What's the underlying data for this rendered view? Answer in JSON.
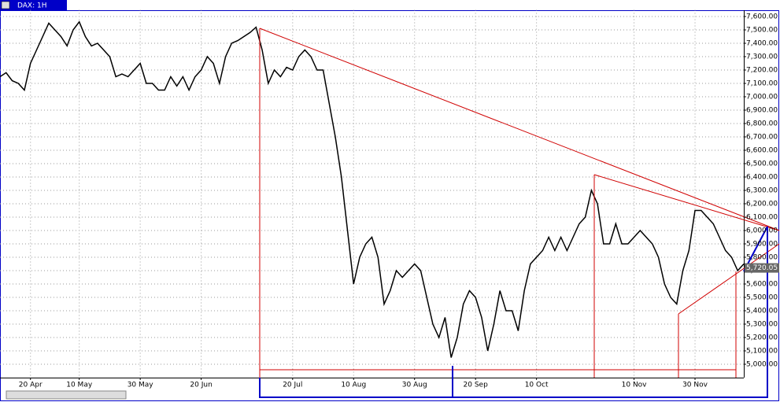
{
  "chart_data": {
    "type": "line",
    "title": "DAX: 1H",
    "categories": [
      null,
      null,
      null,
      null,
      null,
      "20 Apr",
      null,
      null,
      null,
      null,
      null,
      null,
      null,
      "10 May",
      null,
      null,
      null,
      null,
      null,
      null,
      null,
      null,
      null,
      "30 May",
      null,
      null,
      null,
      null,
      null,
      null,
      null,
      null,
      null,
      "20 Jun",
      null,
      null,
      null,
      null,
      null,
      null,
      null,
      null,
      null,
      null,
      null,
      null,
      null,
      null,
      "20 Jul",
      null,
      null,
      null,
      null,
      null,
      null,
      null,
      null,
      null,
      "10 Aug",
      null,
      null,
      null,
      null,
      null,
      null,
      null,
      null,
      null,
      "30 Aug",
      null,
      null,
      null,
      null,
      null,
      null,
      null,
      null,
      null,
      "20 Sep",
      null,
      null,
      null,
      null,
      null,
      null,
      null,
      null,
      null,
      "10 Oct",
      null,
      null,
      null,
      null,
      null,
      null,
      null,
      null,
      null,
      null,
      null,
      null,
      null,
      null,
      null,
      "10 Nov",
      null,
      null,
      null,
      null,
      null,
      null,
      null,
      null,
      null,
      "30 Nov",
      null,
      null,
      null,
      null,
      null,
      null,
      null,
      null
    ],
    "series": [
      {
        "name": "DAX",
        "color": "#000000",
        "values": [
          7150,
          7180,
          7120,
          7100,
          7050,
          7250,
          7350,
          7450,
          7550,
          7500,
          7450,
          7380,
          7500,
          7560,
          7450,
          7380,
          7400,
          7350,
          7300,
          7150,
          7170,
          7150,
          7200,
          7250,
          7100,
          7100,
          7050,
          7050,
          7150,
          7080,
          7150,
          7050,
          7150,
          7200,
          7300,
          7250,
          7100,
          7300,
          7400,
          7420,
          7450,
          7480,
          7520,
          7350,
          7100,
          7200,
          7150,
          7220,
          7200,
          7300,
          7350,
          7300,
          7200,
          7200,
          6950,
          6700,
          6400,
          6000,
          5600,
          5800,
          5900,
          5950,
          5800,
          5450,
          5550,
          5700,
          5650,
          5700,
          5750,
          5700,
          5500,
          5300,
          5200,
          5350,
          5050,
          5200,
          5450,
          5550,
          5500,
          5350,
          5100,
          5300,
          5550,
          5400,
          5400,
          5250,
          5550,
          5750,
          5800,
          5850,
          5950,
          5850,
          5950,
          5850,
          5950,
          6050,
          6100,
          6300,
          6200,
          5900,
          5900,
          6050,
          5900,
          5900,
          5950,
          6000,
          5950,
          5900,
          5800,
          5600,
          5500,
          5450,
          5700,
          5850,
          6150,
          6150,
          6100,
          6050,
          5950,
          5850,
          5800,
          5700,
          5750
        ]
      }
    ],
    "last_price": {
      "value": 5720.05,
      "label": "5,720.05"
    },
    "ylim": [
      4900,
      7650
    ],
    "yticks": [
      {
        "value": 5000,
        "label": "5,000.00"
      },
      {
        "value": 5100,
        "label": "5,100.00"
      },
      {
        "value": 5200,
        "label": "5,200.00"
      },
      {
        "value": 5300,
        "label": "5,300.00"
      },
      {
        "value": 5400,
        "label": "5,400.00"
      },
      {
        "value": 5500,
        "label": "5,500.00"
      },
      {
        "value": 5600,
        "label": "5,600.00"
      },
      {
        "value": 5700,
        "label": "5,700.00"
      },
      {
        "value": 5800,
        "label": "5,800.00"
      },
      {
        "value": 5900,
        "label": "5,900.00"
      },
      {
        "value": 6000,
        "label": "6,000.00"
      },
      {
        "value": 6100,
        "label": "6,100.00"
      },
      {
        "value": 6200,
        "label": "6,200.00"
      },
      {
        "value": 6300,
        "label": "6,300.00"
      },
      {
        "value": 6400,
        "label": "6,400.00"
      },
      {
        "value": 6500,
        "label": "6,500.00"
      },
      {
        "value": 6600,
        "label": "6,600.00"
      },
      {
        "value": 6700,
        "label": "6,700.00"
      },
      {
        "value": 6800,
        "label": "6,800.00"
      },
      {
        "value": 6900,
        "label": "6,900.00"
      },
      {
        "value": 7000,
        "label": "7,000.00"
      },
      {
        "value": 7100,
        "label": "7,100.00"
      },
      {
        "value": 7200,
        "label": "7,200.00"
      },
      {
        "value": 7300,
        "label": "7,300.00"
      },
      {
        "value": 7400,
        "label": "7,400.00"
      },
      {
        "value": 7500,
        "label": "7,500.00"
      },
      {
        "value": 7600,
        "label": "7,600.00"
      }
    ],
    "grid": true
  }
}
